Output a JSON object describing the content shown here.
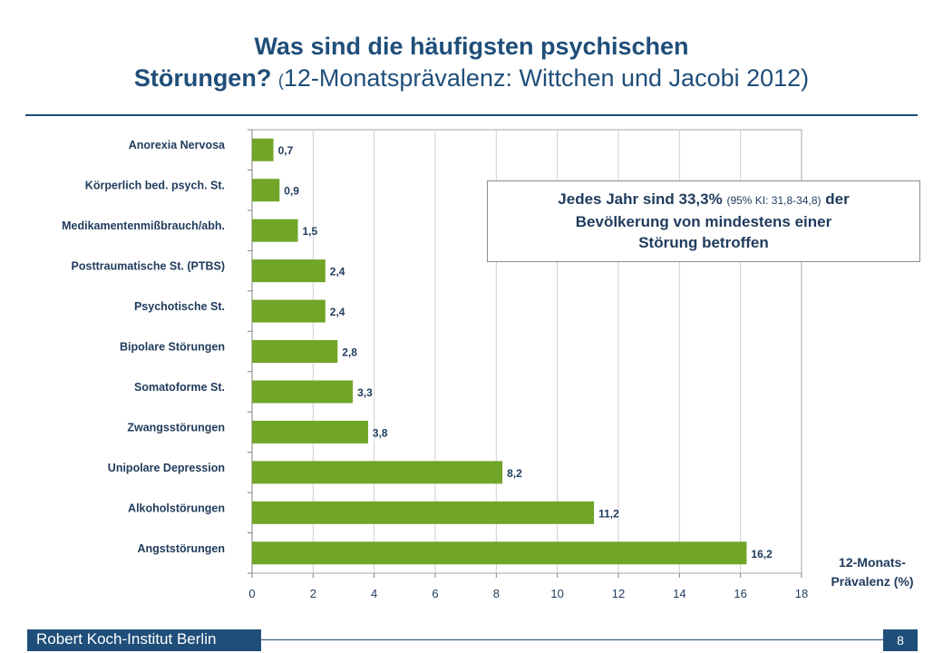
{
  "title": {
    "line1": "Was sind die häufigsten psychischen",
    "line2_bold": "Störungen?",
    "line2_paren": "(",
    "line2_rest": "12-Monatsprävalenz:  Wittchen und Jacobi 2012)"
  },
  "callout": {
    "part1": "Jedes Jahr sind 33,3%",
    "small": "(95% KI: 31,8-34,8)",
    "part2": "der",
    "line2": "Bevölkerung von mindestens einer",
    "line3": "Störung betroffen"
  },
  "xaxis_title": {
    "line1": "12-Monats-",
    "line2": "Prävalenz  (%)"
  },
  "footer": {
    "org": "Robert Koch-Institut Berlin",
    "page": "8"
  },
  "colors": {
    "bar": "#70a527",
    "title": "#1f4e79",
    "text": "#1f3b5c"
  },
  "chart_data": {
    "type": "bar",
    "orientation": "horizontal",
    "categories": [
      "Anorexia Nervosa",
      "Körperlich bed. psych. St.",
      "Medikamentenmißbrauch/abh.",
      "Posttraumatische St. (PTBS)",
      "Psychotische St.",
      "Bipolare Störungen",
      "Somatoforme St.",
      "Zwangsstörungen",
      "Unipolare Depression",
      "Alkoholstörungen",
      "Angststörungen"
    ],
    "values": [
      0.7,
      0.9,
      1.5,
      2.4,
      2.4,
      2.8,
      3.3,
      3.8,
      8.2,
      11.2,
      16.2
    ],
    "value_labels": [
      "0,7",
      "0,9",
      "1,5",
      "2,4",
      "2,4",
      "2,8",
      "3,3",
      "3,8",
      "8,2",
      "11,2",
      "16,2"
    ],
    "xlim": [
      0,
      18
    ],
    "xticks": [
      0,
      2,
      4,
      6,
      8,
      10,
      12,
      14,
      16,
      18
    ],
    "xlabel": "12-Monats-Prävalenz (%)",
    "grid": true
  }
}
